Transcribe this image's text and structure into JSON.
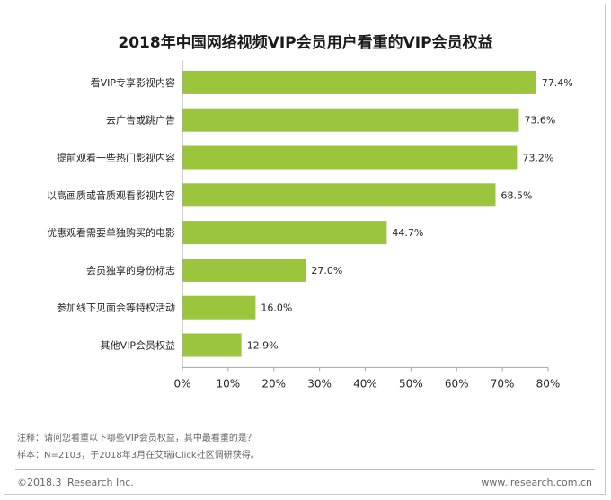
{
  "chart_data": {
    "type": "bar",
    "orientation": "horizontal",
    "title": "2018年中国网络视频VIP会员用户看重的VIP会员权益",
    "categories": [
      "看VIP专享影视内容",
      "去广告或跳广告",
      "提前观看一些热门影视内容",
      "以高画质或音质观看影视内容",
      "优惠观看需要单独购买的电影",
      "会员独享的身份标志",
      "参加线下见面会等特权活动",
      "其他VIP会员权益"
    ],
    "values": [
      77.4,
      73.6,
      73.2,
      68.5,
      44.7,
      27.0,
      16.0,
      12.9
    ],
    "value_labels": [
      "77.4%",
      "73.6%",
      "73.2%",
      "68.5%",
      "44.7%",
      "27.0%",
      "16.0%",
      "12.9%"
    ],
    "x_ticks": [
      0,
      10,
      20,
      30,
      40,
      50,
      60,
      70,
      80
    ],
    "x_tick_labels": [
      "0%",
      "10%",
      "20%",
      "30%",
      "40%",
      "50%",
      "60%",
      "70%",
      "80%"
    ],
    "xlim": [
      0,
      80
    ],
    "xlabel": "",
    "ylabel": "",
    "grid": false,
    "bar_color": "#9bc53d",
    "axis_color": "#a6a6a6"
  },
  "footer": {
    "note": "注释：请问您看重以下哪些VIP会员权益，其中最看重的是？",
    "sample": "样本：N=2103，于2018年3月在艾瑞iClick社区调研获得。",
    "copyright": "©2018.3 iResearch Inc.",
    "website": "www.iresearch.com.cn"
  }
}
